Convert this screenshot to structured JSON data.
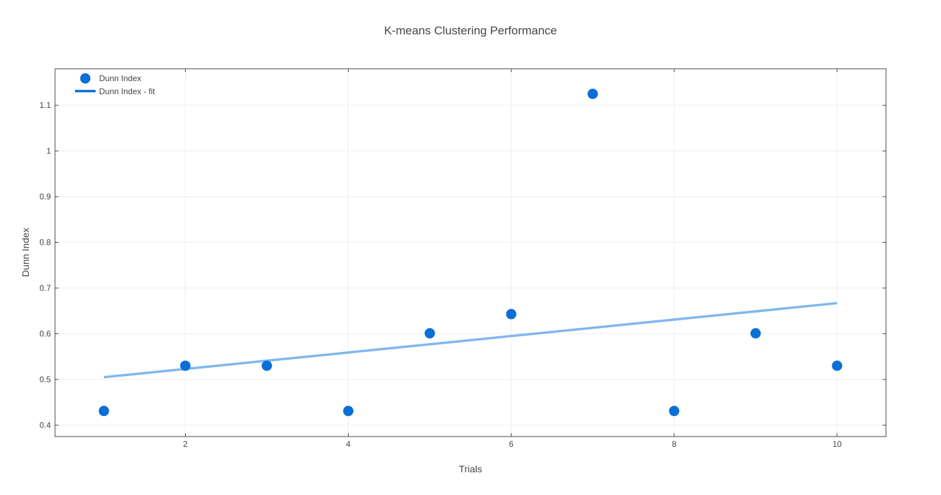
{
  "chart_data": {
    "type": "scatter",
    "title": "K-means Clustering Performance",
    "xlabel": "Trials",
    "ylabel": "Dunn Index",
    "xlim": [
      0.4,
      10.6
    ],
    "ylim": [
      0.375,
      1.18
    ],
    "x_ticks": [
      2,
      4,
      6,
      8,
      10
    ],
    "y_ticks": [
      0.4,
      0.5,
      0.6,
      0.7,
      0.8,
      0.9,
      1,
      1.1
    ],
    "x_tick_labels": [
      "2",
      "4",
      "6",
      "8",
      "10"
    ],
    "y_tick_labels": [
      "0.4",
      "0.5",
      "0.6",
      "0.7",
      "0.8",
      "0.9",
      "1",
      "1.1"
    ],
    "grid": true,
    "legend_position": "top-left",
    "series": [
      {
        "name": "Dunn Index",
        "mode": "markers",
        "color": "#0a6fd6",
        "x": [
          1,
          2,
          3,
          4,
          5,
          6,
          7,
          8,
          9,
          10
        ],
        "y": [
          0.431,
          0.53,
          0.53,
          0.431,
          0.601,
          0.643,
          1.125,
          0.431,
          0.601,
          0.53
        ]
      },
      {
        "name": "Dunn Index - fit",
        "mode": "line",
        "color": "#0a6fd6",
        "fit_color": "#7fb8ec",
        "x": [
          1,
          10
        ],
        "y": [
          0.505,
          0.667
        ]
      }
    ]
  }
}
